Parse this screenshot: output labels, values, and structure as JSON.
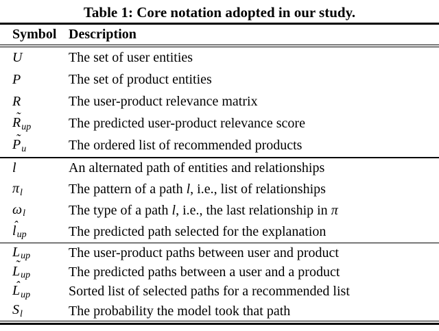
{
  "title": "Table 1: Core notation adopted in our study.",
  "columns": [
    "Symbol",
    "Description"
  ],
  "accent_glyphs": {
    "tilde": "˜",
    "hat": "ˆ"
  },
  "table": {
    "sections": [
      {
        "rows": [
          {
            "symbol": {
              "base": "U"
            },
            "desc": [
              {
                "t": "The set of user entities"
              }
            ]
          },
          {
            "symbol": {
              "base": "P"
            },
            "desc": [
              {
                "t": "The set of product entities"
              }
            ]
          },
          {
            "symbol": {
              "base": "R"
            },
            "desc": [
              {
                "t": "The user-product relevance matrix"
              }
            ]
          },
          {
            "symbol": {
              "base": "R",
              "accent": "tilde",
              "sub": "up"
            },
            "desc": [
              {
                "t": "The predicted user-product relevance score"
              }
            ]
          },
          {
            "symbol": {
              "base": "P",
              "accent": "tilde",
              "sub": "u"
            },
            "desc": [
              {
                "t": "The ordered list of recommended products"
              }
            ]
          }
        ]
      },
      {
        "rows": [
          {
            "symbol": {
              "base": "l"
            },
            "desc": [
              {
                "t": "An alternated path of entities and relationships"
              }
            ]
          },
          {
            "symbol": {
              "base": "π",
              "sub": "l"
            },
            "desc": [
              {
                "t": "The pattern of a path "
              },
              {
                "t": "l",
                "math": true
              },
              {
                "t": ", i.e., list of relationships"
              }
            ]
          },
          {
            "symbol": {
              "base": "ω",
              "sub": "l"
            },
            "desc": [
              {
                "t": "The type of a path "
              },
              {
                "t": "l",
                "math": true
              },
              {
                "t": ", i.e., the last relationship in "
              },
              {
                "t": "π",
                "math": true
              }
            ]
          },
          {
            "symbol": {
              "base": "l",
              "accent": "hat",
              "sub": "up"
            },
            "desc": [
              {
                "t": "The predicted path selected for the explanation"
              }
            ]
          }
        ]
      },
      {
        "rows": [
          {
            "symbol": {
              "base": "L",
              "sub": "up"
            },
            "desc": [
              {
                "t": "The user-product paths between user and product"
              }
            ]
          },
          {
            "symbol": {
              "base": "L",
              "accent": "tilde",
              "sub": "up"
            },
            "desc": [
              {
                "t": "The predicted paths between a user and a product"
              }
            ]
          },
          {
            "symbol": {
              "base": "L",
              "accent": "hat",
              "sub": "up"
            },
            "desc": [
              {
                "t": "Sorted list of selected paths for a recommended list"
              }
            ]
          },
          {
            "symbol": {
              "base": "S",
              "sub": "l"
            },
            "desc": [
              {
                "t": "The probability the model took that path"
              }
            ]
          }
        ]
      }
    ]
  }
}
